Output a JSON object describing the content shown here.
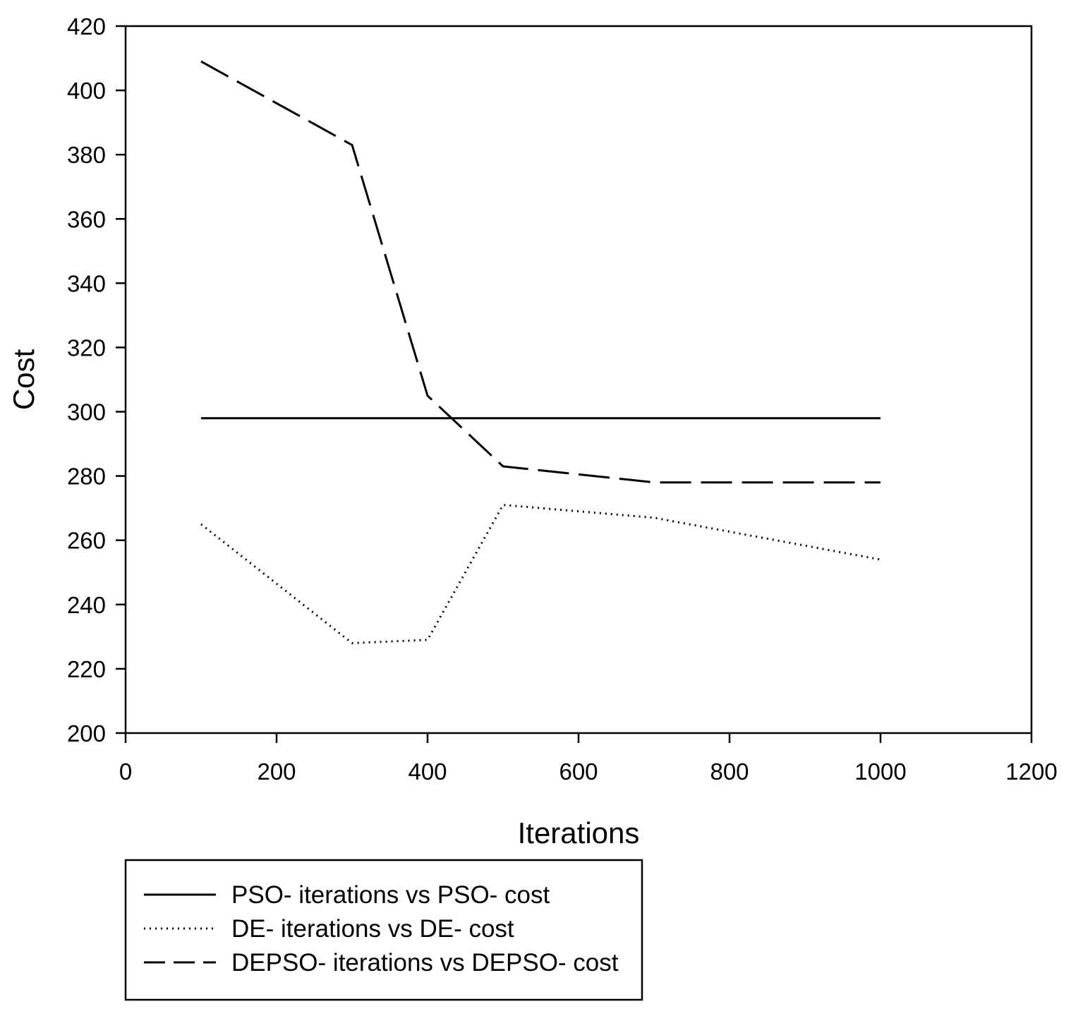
{
  "chart_data": {
    "type": "line",
    "title": "",
    "xlabel": "Iterations",
    "ylabel": "Cost",
    "xlim": [
      0,
      1200
    ],
    "ylim": [
      200,
      420
    ],
    "xticks": [
      0,
      200,
      400,
      600,
      800,
      1000,
      1200
    ],
    "yticks": [
      200,
      220,
      240,
      260,
      280,
      300,
      320,
      340,
      360,
      380,
      400,
      420
    ],
    "grid": false,
    "legend_position": "bottom",
    "series": [
      {
        "name": "PSO- iterations vs PSO- cost",
        "style": "solid",
        "color": "#000000",
        "x": [
          100,
          300,
          400,
          500,
          700,
          1000
        ],
        "y": [
          298,
          298,
          298,
          298,
          298,
          298
        ]
      },
      {
        "name": "DE- iterations vs DE- cost",
        "style": "dotted",
        "color": "#000000",
        "x": [
          100,
          300,
          400,
          500,
          700,
          1000
        ],
        "y": [
          265,
          228,
          229,
          271,
          267,
          254
        ]
      },
      {
        "name": "DEPSO- iterations vs DEPSO- cost",
        "style": "dashed",
        "color": "#000000",
        "x": [
          100,
          300,
          400,
          500,
          700,
          1000
        ],
        "y": [
          409,
          383,
          305,
          283,
          278,
          278
        ]
      }
    ]
  }
}
